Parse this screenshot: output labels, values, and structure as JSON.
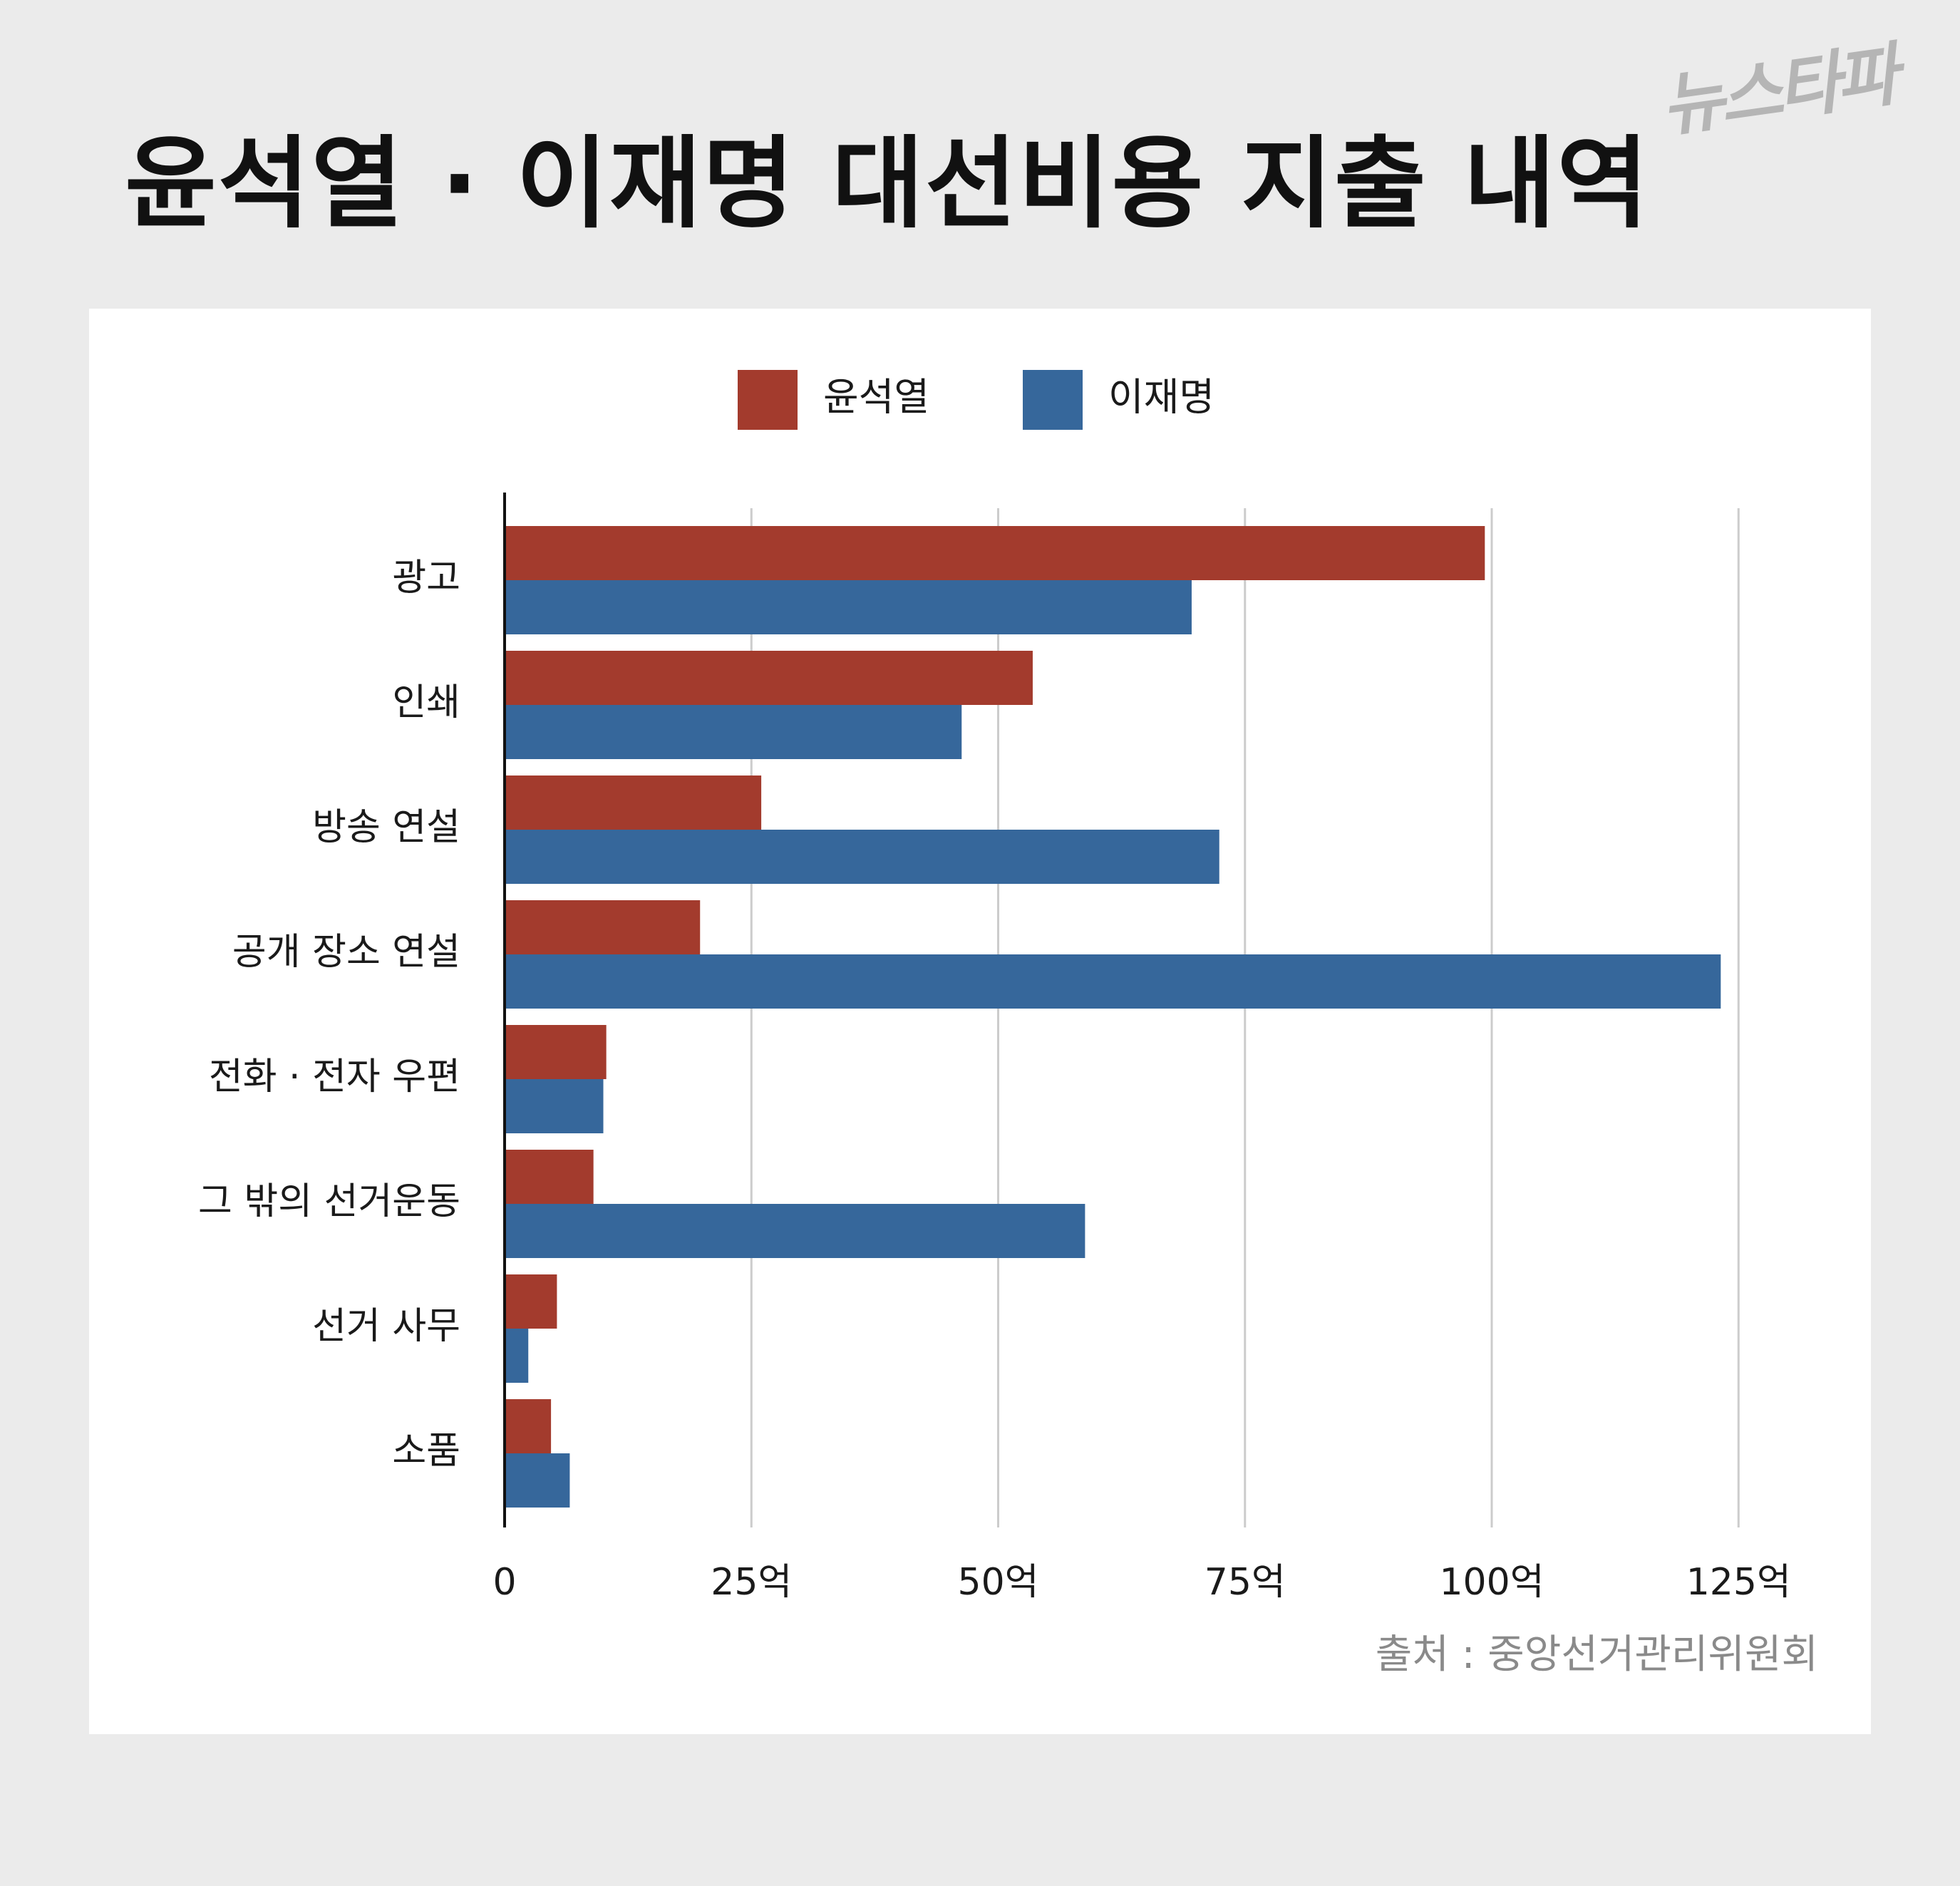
{
  "header": {
    "title": "윤석열 · 이재명 대선비용 지출 내역",
    "brand": "뉴스타파"
  },
  "source_note": "출처 : 중앙선거관리위원회",
  "colors": {
    "yoon": "#a33b2d",
    "lee": "#36679b",
    "grid": "#cccccc",
    "axis": "#111111",
    "text": "#1a1a1a"
  },
  "chart_data": {
    "type": "bar",
    "orientation": "horizontal",
    "categories": [
      "광고",
      "인쇄",
      "방송 연설",
      "공개 장소 연설",
      "전화 · 전자 우편",
      "그 밖의 선거운동",
      "선거 사무",
      "소품"
    ],
    "series": [
      {
        "name": "윤석열",
        "values": [
          99.3,
          53.5,
          26.0,
          19.8,
          10.3,
          9.0,
          5.3,
          4.7
        ]
      },
      {
        "name": "이재명",
        "values": [
          69.6,
          46.3,
          72.4,
          123.2,
          10.0,
          58.8,
          2.4,
          6.6
        ]
      }
    ],
    "xlim": [
      0,
      125
    ],
    "x_ticks": [
      0,
      25,
      50,
      75,
      100,
      125
    ],
    "x_tick_labels": [
      "0",
      "25억",
      "50억",
      "75억",
      "100억",
      "125억"
    ],
    "grid": true,
    "legend": "top-center"
  }
}
